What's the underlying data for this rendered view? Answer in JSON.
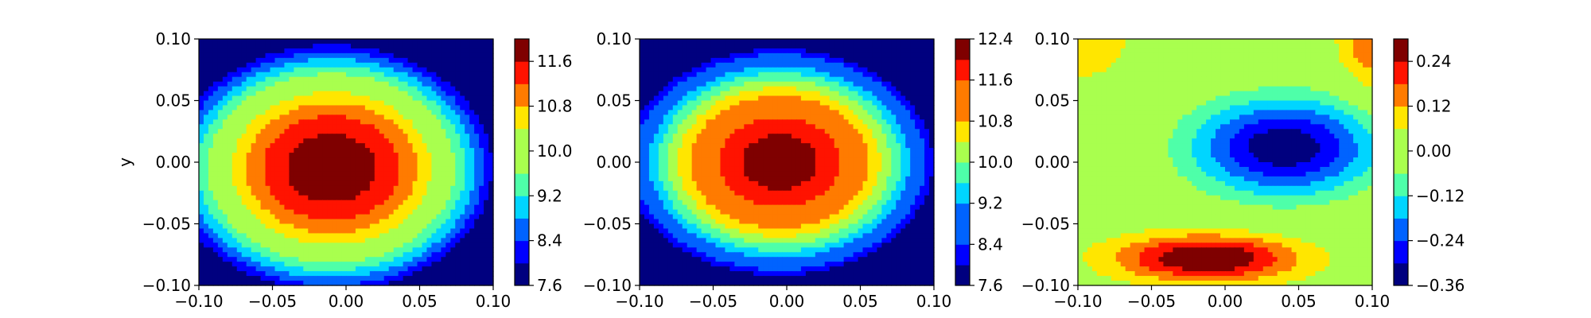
{
  "colormap": [
    "#00007f",
    "#0000ff",
    "#0063ff",
    "#00d5ff",
    "#4effa9",
    "#a9ff4e",
    "#ffe600",
    "#ff7b00",
    "#ff1300",
    "#7f0000"
  ],
  "chart_data": [
    {
      "type": "heatmap",
      "title": "",
      "xlabel": "",
      "ylabel": "y",
      "xlim": [
        -0.1,
        0.1
      ],
      "ylim": [
        -0.1,
        0.1
      ],
      "xticks": [
        "−0.10",
        "−0.05",
        "0.00",
        "0.05",
        "0.10"
      ],
      "yticks": [
        "−0.10",
        "−0.05",
        "0.00",
        "0.05",
        "0.10"
      ],
      "colorbar": {
        "range": [
          7.6,
          12.0
        ],
        "levels": [
          7.6,
          8.0,
          8.4,
          8.8,
          9.2,
          9.6,
          10.0,
          10.4,
          10.8,
          11.2,
          11.6,
          12.0
        ],
        "ticks": [
          "7.6",
          "8.4",
          "9.2",
          "10.0",
          "10.8",
          "11.6"
        ],
        "tick_values": [
          7.6,
          8.4,
          9.2,
          10.0,
          10.8,
          11.6
        ]
      },
      "field": {
        "kind": "bump",
        "center": [
          -0.01,
          -0.005
        ],
        "peak": 11.9,
        "ax": 0.082,
        "ay": 0.075
      }
    },
    {
      "type": "heatmap",
      "title": "",
      "xlabel": "",
      "ylabel": "",
      "xlim": [
        -0.1,
        0.1
      ],
      "ylim": [
        -0.1,
        0.1
      ],
      "xticks": [
        "−0.10",
        "−0.05",
        "0.00",
        "0.05",
        "0.10"
      ],
      "yticks": [
        "−0.10",
        "−0.05",
        "0.00",
        "0.05",
        "0.10"
      ],
      "colorbar": {
        "range": [
          7.6,
          12.4
        ],
        "levels": [
          7.6,
          8.0,
          8.4,
          8.8,
          9.2,
          9.6,
          10.0,
          10.4,
          10.8,
          11.2,
          11.6,
          12.0,
          12.4
        ],
        "ticks": [
          "7.6",
          "8.4",
          "9.2",
          "10.0",
          "10.8",
          "11.6",
          "12.4"
        ],
        "tick_values": [
          7.6,
          8.4,
          9.2,
          10.0,
          10.8,
          11.6,
          12.4
        ]
      },
      "field": {
        "kind": "bump",
        "center": [
          -0.005,
          0.0
        ],
        "peak": 12.25,
        "ax": 0.075,
        "ay": 0.066
      }
    },
    {
      "type": "heatmap",
      "title": "",
      "xlabel": "",
      "ylabel": "",
      "xlim": [
        -0.1,
        0.1
      ],
      "ylim": [
        -0.1,
        0.1
      ],
      "xticks": [
        "−0.10",
        "−0.05",
        "0.00",
        "0.05",
        "0.10"
      ],
      "yticks": [
        "−0.10",
        "−0.05",
        "0.00",
        "0.05",
        "0.10"
      ],
      "colorbar": {
        "range": [
          -0.36,
          0.3
        ],
        "levels": [
          -0.36,
          -0.3,
          -0.24,
          -0.18,
          -0.12,
          -0.06,
          0.0,
          0.06,
          0.12,
          0.18,
          0.24,
          0.3
        ],
        "ticks": [
          "−0.36",
          "−0.24",
          "−0.12",
          "0.00",
          "0.12",
          "0.24"
        ],
        "tick_values": [
          -0.36,
          -0.24,
          -0.12,
          0.0,
          0.12,
          0.24
        ]
      },
      "field": {
        "kind": "difference",
        "base": 0.02,
        "features": [
          {
            "center": [
              0.04,
              0.012
            ],
            "amp": -0.37,
            "sx": 0.045,
            "sy": 0.028
          },
          {
            "center": [
              -0.012,
              -0.078
            ],
            "amp": 0.3,
            "sx": 0.042,
            "sy": 0.013
          },
          {
            "center": [
              -0.1,
              0.1
            ],
            "amp": 0.06,
            "sx": 0.035,
            "sy": 0.035
          },
          {
            "center": [
              0.1,
              0.1
            ],
            "amp": 0.16,
            "sx": 0.015,
            "sy": 0.03
          }
        ]
      }
    }
  ]
}
